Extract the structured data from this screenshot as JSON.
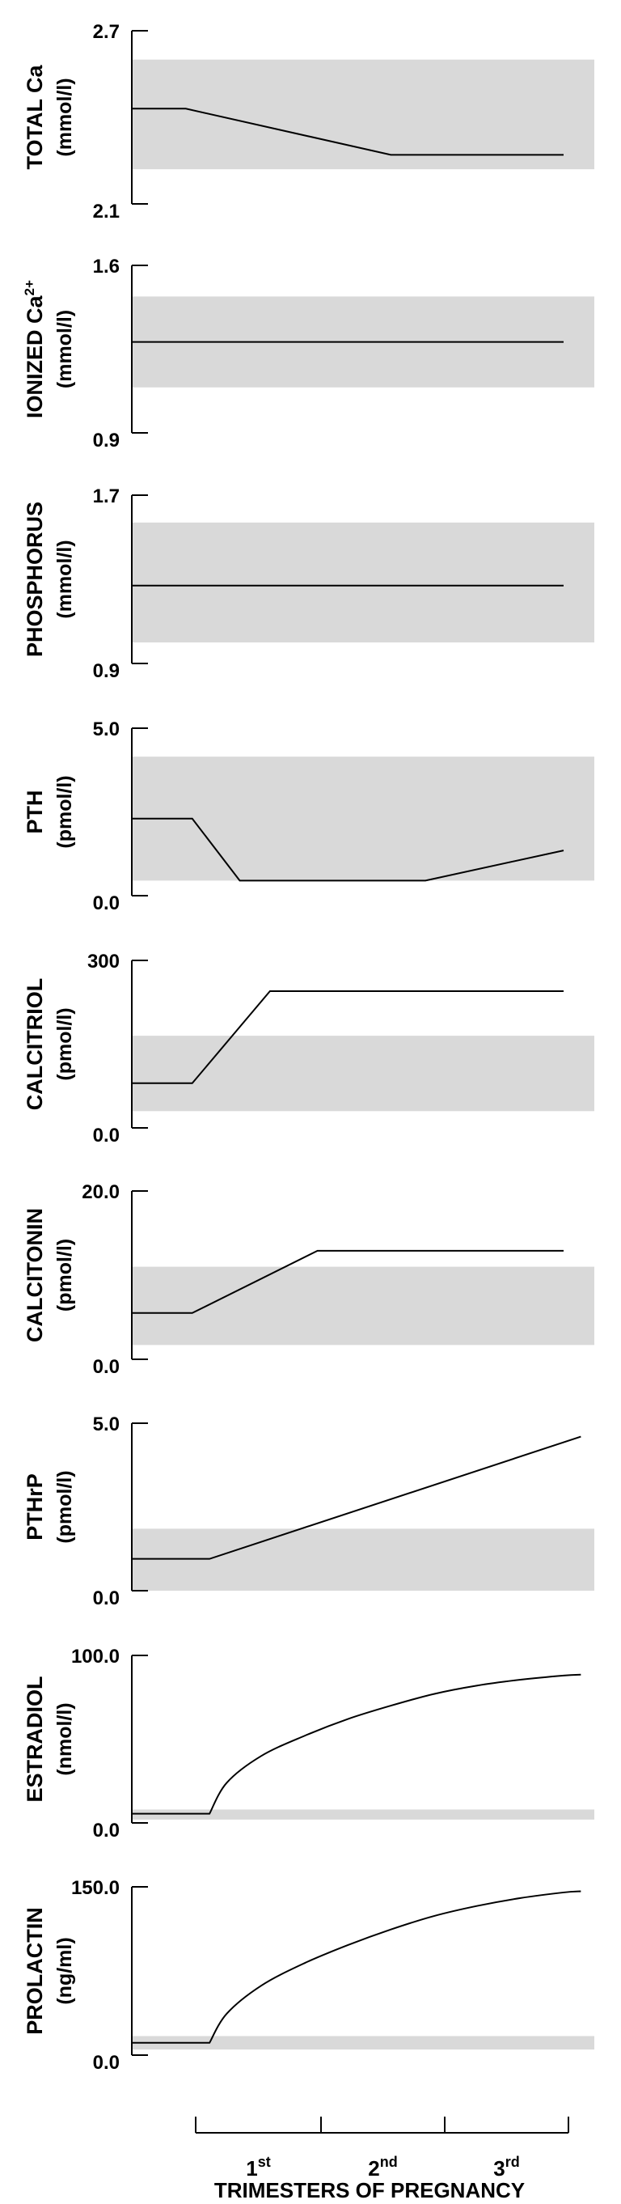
{
  "chart_data": [
    {
      "type": "line",
      "ylabel": "TOTAL Ca",
      "yunit": "(mmol/l)",
      "ylim": [
        2.1,
        2.7
      ],
      "yticks": [
        "2.7",
        "2.1"
      ],
      "normal_range": [
        2.22,
        2.6
      ],
      "points": [
        [
          0.0,
          2.43
        ],
        [
          0.125,
          2.43
        ],
        [
          0.6,
          2.27
        ],
        [
          1.0,
          2.27
        ]
      ],
      "curve": "linear"
    },
    {
      "type": "line",
      "ylabel": "IONIZED Ca",
      "ysuper": "2+",
      "yunit": "(mmol/l)",
      "ylim": [
        0.9,
        1.6
      ],
      "yticks": [
        "1.6",
        "0.9"
      ],
      "normal_range": [
        1.09,
        1.47
      ],
      "points": [
        [
          0.0,
          1.28
        ],
        [
          1.0,
          1.28
        ]
      ],
      "curve": "linear"
    },
    {
      "type": "line",
      "ylabel": "PHOSPHORUS",
      "yunit": "(mmol/l)",
      "ylim": [
        0.9,
        1.7
      ],
      "yticks": [
        "1.7",
        "0.9"
      ],
      "normal_range": [
        1.0,
        1.57
      ],
      "points": [
        [
          0.0,
          1.27
        ],
        [
          1.0,
          1.27
        ]
      ],
      "curve": "linear"
    },
    {
      "type": "line",
      "ylabel": "PTH",
      "yunit": "(pmol/l)",
      "ylim": [
        0.0,
        5.0
      ],
      "yticks": [
        "5.0",
        "0.0"
      ],
      "normal_range": [
        0.45,
        4.15
      ],
      "points": [
        [
          0.0,
          2.3
        ],
        [
          0.14,
          2.3
        ],
        [
          0.25,
          0.45
        ],
        [
          0.68,
          0.45
        ],
        [
          1.0,
          1.35
        ]
      ],
      "curve": "linear"
    },
    {
      "type": "line",
      "ylabel": "CALCITRIOL",
      "yunit": "(pmol/l)",
      "ylim": [
        0,
        300
      ],
      "yticks": [
        "300",
        "0.0"
      ],
      "normal_range": [
        30,
        165
      ],
      "points": [
        [
          0.0,
          80
        ],
        [
          0.14,
          80
        ],
        [
          0.32,
          245
        ],
        [
          1.0,
          245
        ]
      ],
      "curve": "linear"
    },
    {
      "type": "line",
      "ylabel": "CALCITONIN",
      "yunit": "(pmol/l)",
      "ylim": [
        0.0,
        20.0
      ],
      "yticks": [
        "20.0",
        "0.0"
      ],
      "normal_range": [
        1.7,
        11.0
      ],
      "points": [
        [
          0.0,
          5.5
        ],
        [
          0.14,
          5.5
        ],
        [
          0.43,
          12.9
        ],
        [
          1.0,
          12.9
        ]
      ],
      "curve": "linear"
    },
    {
      "type": "line",
      "ylabel": "PTHrP",
      "yunit": "(pmol/l)",
      "ylim": [
        0.0,
        5.0
      ],
      "yticks": [
        "5.0",
        "0.0"
      ],
      "normal_range": [
        0.0,
        1.85
      ],
      "points": [
        [
          0.0,
          0.95
        ],
        [
          0.18,
          0.95
        ],
        [
          1.04,
          4.6
        ]
      ],
      "curve": "linear"
    },
    {
      "type": "line",
      "ylabel": "ESTRADIOL",
      "yunit": "(nmol/l)",
      "ylim": [
        0.0,
        100.0
      ],
      "yticks": [
        "100.0",
        "0.0"
      ],
      "normal_range": [
        2.0,
        8.0
      ],
      "points": [
        [
          0.0,
          5.5
        ],
        [
          0.18,
          5.5
        ],
        [
          0.22,
          24.0
        ],
        [
          0.3,
          40.0
        ],
        [
          0.4,
          52.0
        ],
        [
          0.5,
          62.0
        ],
        [
          0.6,
          70.0
        ],
        [
          0.7,
          77.0
        ],
        [
          0.8,
          82.0
        ],
        [
          0.9,
          85.5
        ],
        [
          1.0,
          88.0
        ],
        [
          1.04,
          88.5
        ]
      ],
      "curve": "smooth"
    },
    {
      "type": "line",
      "ylabel": "PROLACTIN",
      "yunit": "(ng/ml)",
      "ylim": [
        0.0,
        150.0
      ],
      "yticks": [
        "150.0",
        "0.0"
      ],
      "normal_range": [
        5.0,
        17.0
      ],
      "points": [
        [
          0.0,
          11.0
        ],
        [
          0.18,
          11.0
        ],
        [
          0.22,
          37.0
        ],
        [
          0.3,
          62.0
        ],
        [
          0.4,
          82.0
        ],
        [
          0.5,
          98.0
        ],
        [
          0.6,
          112.0
        ],
        [
          0.7,
          124.0
        ],
        [
          0.8,
          133.0
        ],
        [
          0.9,
          140.0
        ],
        [
          1.0,
          145.0
        ],
        [
          1.04,
          146.0
        ]
      ],
      "curve": "smooth"
    }
  ],
  "x_axis": {
    "label": "TRIMESTERS OF PREGNANCY",
    "ticks": [
      {
        "num": "1",
        "sup": "st"
      },
      {
        "num": "2",
        "sup": "nd"
      },
      {
        "num": "3",
        "sup": "rd"
      }
    ]
  },
  "colors": {
    "normal_band": "#d9d9d9",
    "line": "#000000"
  }
}
